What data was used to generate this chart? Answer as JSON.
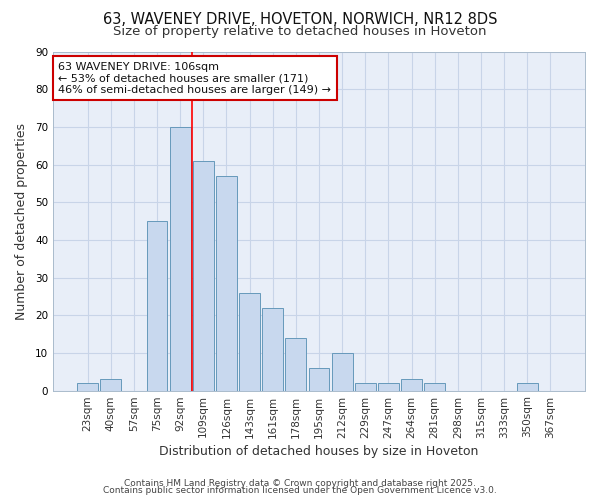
{
  "title_line1": "63, WAVENEY DRIVE, HOVETON, NORWICH, NR12 8DS",
  "title_line2": "Size of property relative to detached houses in Hoveton",
  "categories": [
    "23sqm",
    "40sqm",
    "57sqm",
    "75sqm",
    "92sqm",
    "109sqm",
    "126sqm",
    "143sqm",
    "161sqm",
    "178sqm",
    "195sqm",
    "212sqm",
    "229sqm",
    "247sqm",
    "264sqm",
    "281sqm",
    "298sqm",
    "315sqm",
    "333sqm",
    "350sqm",
    "367sqm"
  ],
  "values": [
    2,
    3,
    0,
    45,
    70,
    61,
    57,
    26,
    22,
    14,
    6,
    10,
    2,
    2,
    3,
    2,
    0,
    0,
    0,
    2,
    0
  ],
  "bar_color": "#c8d8ee",
  "bar_edge_color": "#6699bb",
  "xlabel": "Distribution of detached houses by size in Hoveton",
  "ylabel": "Number of detached properties",
  "ylim": [
    0,
    90
  ],
  "yticks": [
    0,
    10,
    20,
    30,
    40,
    50,
    60,
    70,
    80,
    90
  ],
  "red_line_index": 5,
  "annotation_text": "63 WAVENEY DRIVE: 106sqm\n← 53% of detached houses are smaller (171)\n46% of semi-detached houses are larger (149) →",
  "annotation_box_facecolor": "#ffffff",
  "annotation_box_edgecolor": "#cc0000",
  "grid_color": "#c8d4e8",
  "bg_color": "#ffffff",
  "plot_bg_color": "#e8eef8",
  "footer1": "Contains HM Land Registry data © Crown copyright and database right 2025.",
  "footer2": "Contains public sector information licensed under the Open Government Licence v3.0.",
  "title_fontsize": 10.5,
  "subtitle_fontsize": 9.5,
  "axis_label_fontsize": 9,
  "tick_fontsize": 7.5,
  "annotation_fontsize": 8,
  "footer_fontsize": 6.5
}
